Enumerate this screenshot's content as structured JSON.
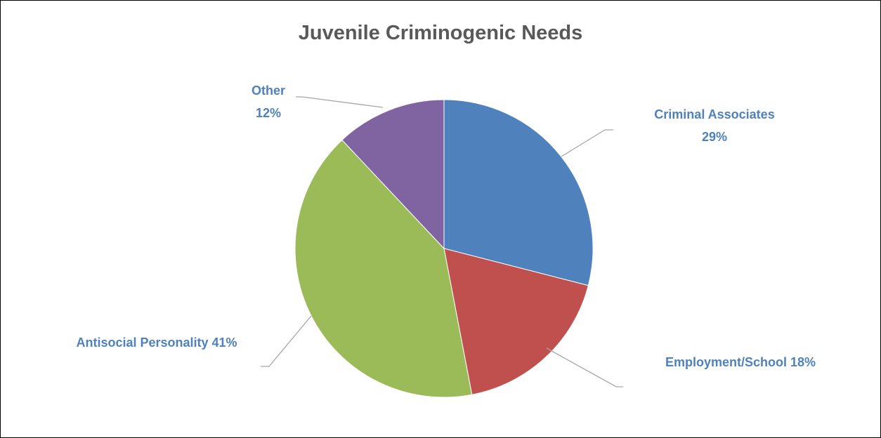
{
  "chart_data": {
    "type": "pie",
    "title": "Juvenile Criminogenic Needs",
    "start_angle_deg": 0,
    "direction": "clockwise",
    "slices": [
      {
        "label": "Criminal Associates",
        "value": 29,
        "percent_label": "29%",
        "color": "#4F81BD",
        "label_layout": "two-line"
      },
      {
        "label": "Employment/School",
        "value": 18,
        "percent_label": "18%",
        "color": "#C0504D",
        "label_layout": "one-line"
      },
      {
        "label": "Antisocial Personality",
        "value": 41,
        "percent_label": "41%",
        "color": "#9BBB59",
        "label_layout": "one-line"
      },
      {
        "label": "Other",
        "value": 12,
        "percent_label": "12%",
        "color": "#8064A2",
        "label_layout": "two-line"
      }
    ],
    "label_color": "#4F81BD",
    "leader_line_color": "#A6A6A6",
    "legend": "none"
  }
}
